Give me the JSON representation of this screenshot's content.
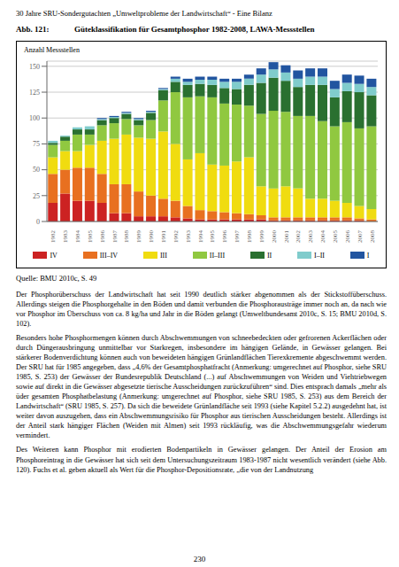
{
  "chart_data": {
    "type": "bar",
    "title": "Güteklassifikation für Gesamtphosphor 1982-2008, LAWA-Messstellen",
    "ylabel": "Anzahl Messstellen",
    "categories": [
      "1982",
      "1983",
      "1984",
      "1985",
      "1986",
      "1987",
      "1988",
      "1989",
      "1990",
      "1991",
      "1992",
      "1993",
      "1994",
      "1995",
      "1996",
      "1997",
      "1998",
      "1999",
      "2000",
      "2001",
      "2002",
      "2003",
      "2004",
      "2005",
      "2006",
      "2007",
      "2008"
    ],
    "series": [
      {
        "name": "IV",
        "color": "#cc2222",
        "values": [
          18,
          27,
          20,
          20,
          18,
          8,
          8,
          5,
          5,
          5,
          4,
          3,
          2,
          2,
          2,
          2,
          2,
          2,
          1,
          1,
          1,
          1,
          1,
          1,
          1,
          1,
          0
        ]
      },
      {
        "name": "III–IV",
        "color": "#e87020",
        "values": [
          28,
          23,
          32,
          32,
          28,
          28,
          28,
          24,
          20,
          17,
          16,
          12,
          9,
          8,
          7,
          6,
          5,
          4,
          3,
          3,
          3,
          3,
          3,
          3,
          3,
          2,
          2
        ]
      },
      {
        "name": "III",
        "color": "#f0dc10",
        "values": [
          16,
          18,
          16,
          22,
          32,
          44,
          48,
          52,
          55,
          65,
          55,
          45,
          55,
          45,
          45,
          50,
          55,
          28,
          28,
          30,
          28,
          18,
          18,
          16,
          14,
          12,
          10
        ]
      },
      {
        "name": "II–III",
        "color": "#90c840",
        "values": [
          12,
          10,
          16,
          10,
          15,
          15,
          15,
          12,
          18,
          30,
          50,
          60,
          55,
          65,
          60,
          55,
          50,
          70,
          75,
          72,
          70,
          80,
          75,
          72,
          78,
          75,
          80
        ]
      },
      {
        "name": "II",
        "color": "#2a7030",
        "values": [
          2,
          4,
          5,
          5,
          5,
          5,
          5,
          5,
          7,
          10,
          10,
          12,
          12,
          12,
          15,
          15,
          20,
          30,
          32,
          30,
          28,
          30,
          35,
          28,
          30,
          35,
          30
        ]
      },
      {
        "name": "I–II",
        "color": "#80cccc",
        "values": [
          2,
          1,
          2,
          3,
          1,
          1,
          1,
          1,
          1,
          1,
          3,
          3,
          4,
          5,
          6,
          7,
          6,
          8,
          8,
          8,
          8,
          8,
          8,
          8,
          8,
          8,
          8
        ]
      },
      {
        "name": "I",
        "color": "#2255a0",
        "values": [
          0,
          0,
          0,
          0,
          1,
          1,
          1,
          1,
          1,
          1,
          2,
          3,
          3,
          3,
          3,
          3,
          4,
          6,
          7,
          7,
          8,
          8,
          8,
          8,
          8,
          8,
          8
        ]
      }
    ],
    "stacked": true,
    "grid": true,
    "ylim": [
      0,
      155
    ],
    "yticks": [
      0,
      25,
      50,
      75,
      100,
      125,
      150
    ],
    "annotations": [
      "30 Jahre SRU-Sondergutachten „Umweltprobleme der Landwirtschaft“ - Eine Bilanz",
      "Abb. 121:",
      "Quelle: BMU 2010c, S. 49",
      "230",
      "Der Phosphorüberschuss der Landwirtschaft hat seit 1990 deutlich stärker abgenommen als der Stickstoffüberschuss. Allerdings steigen die Phosphorgehalte in den Böden und damit verbunden die Phosphorausträge immer noch an, da nach wie vor Phosphor im Überschuss von ca. 8 kg/ha und Jahr in die Böden gelangt (Umweltbundesamt 2010c, S. 15; BMU 2010d, S. 102).",
      "Besonders hohe Phosphormengen können durch Abschwemmungen von schneebedeckten oder gefrorenen Ackerflächen oder durch Düngerausbringung unmittelbar vor Starkregen, insbesondere im hängigen Gelände, in Gewässer gelangen. Bei stärkerer Bodenverdichtung können auch von beweideten hängigen Grünlandflächen Tierexkremente abgeschwemmt werden. Der SRU hat für 1985 angegeben, dass „4,6% der Gesamtphosphatfracht (Anmerkung: umgerechnet auf Phosphor, siehe SRU 1985, S. 253) der Gewässer der Bundesrepublik Deutschland (...) auf Abschwemmungen von Weiden und Viehtriebwegen sowie auf direkt in die Gewässer abgesetzte tierische Ausscheidungen zurückzuführen“ sind. Dies entsprach damals „mehr als üder gesamten Phosphatbelastung (Anmerkung: umgerechnet auf Phosphor, siehe SRU 1985, S. 253) aus dem Bereich der Landwirtschaft“ (SRU 1985, S. 257). Da sich die beweidete Grünlandfläche seit 1993 (siehe Kapitel 5.2.2) ausgedehnt hat, ist weiter davon auszugehen, dass ein Abschwemmungsrisiko für Phosphor aus tierischen Ausscheidungen besteht. Allerdings ist der Anteil stark hängiger Flächen (Weiden mit Almen) seit 1993 rückläufig, was die Abschwemmungsgefahr wiederum vermindert.",
      "Des Weiteren kann Phosphor mit erodierten Bodenpartikeln in Gewässer gelangen. Der Anteil der Erosion am Phosphoreintrag in die Gewässer hat sich seit dem Untersuchungszeitraum 1983-1987 nicht wesentlich verändert (siehe Abb. 120). Fuchs et al. geben aktuell als Wert für die Phosphor-Depositionsrate, „die von der Landnutzung"
    ]
  }
}
